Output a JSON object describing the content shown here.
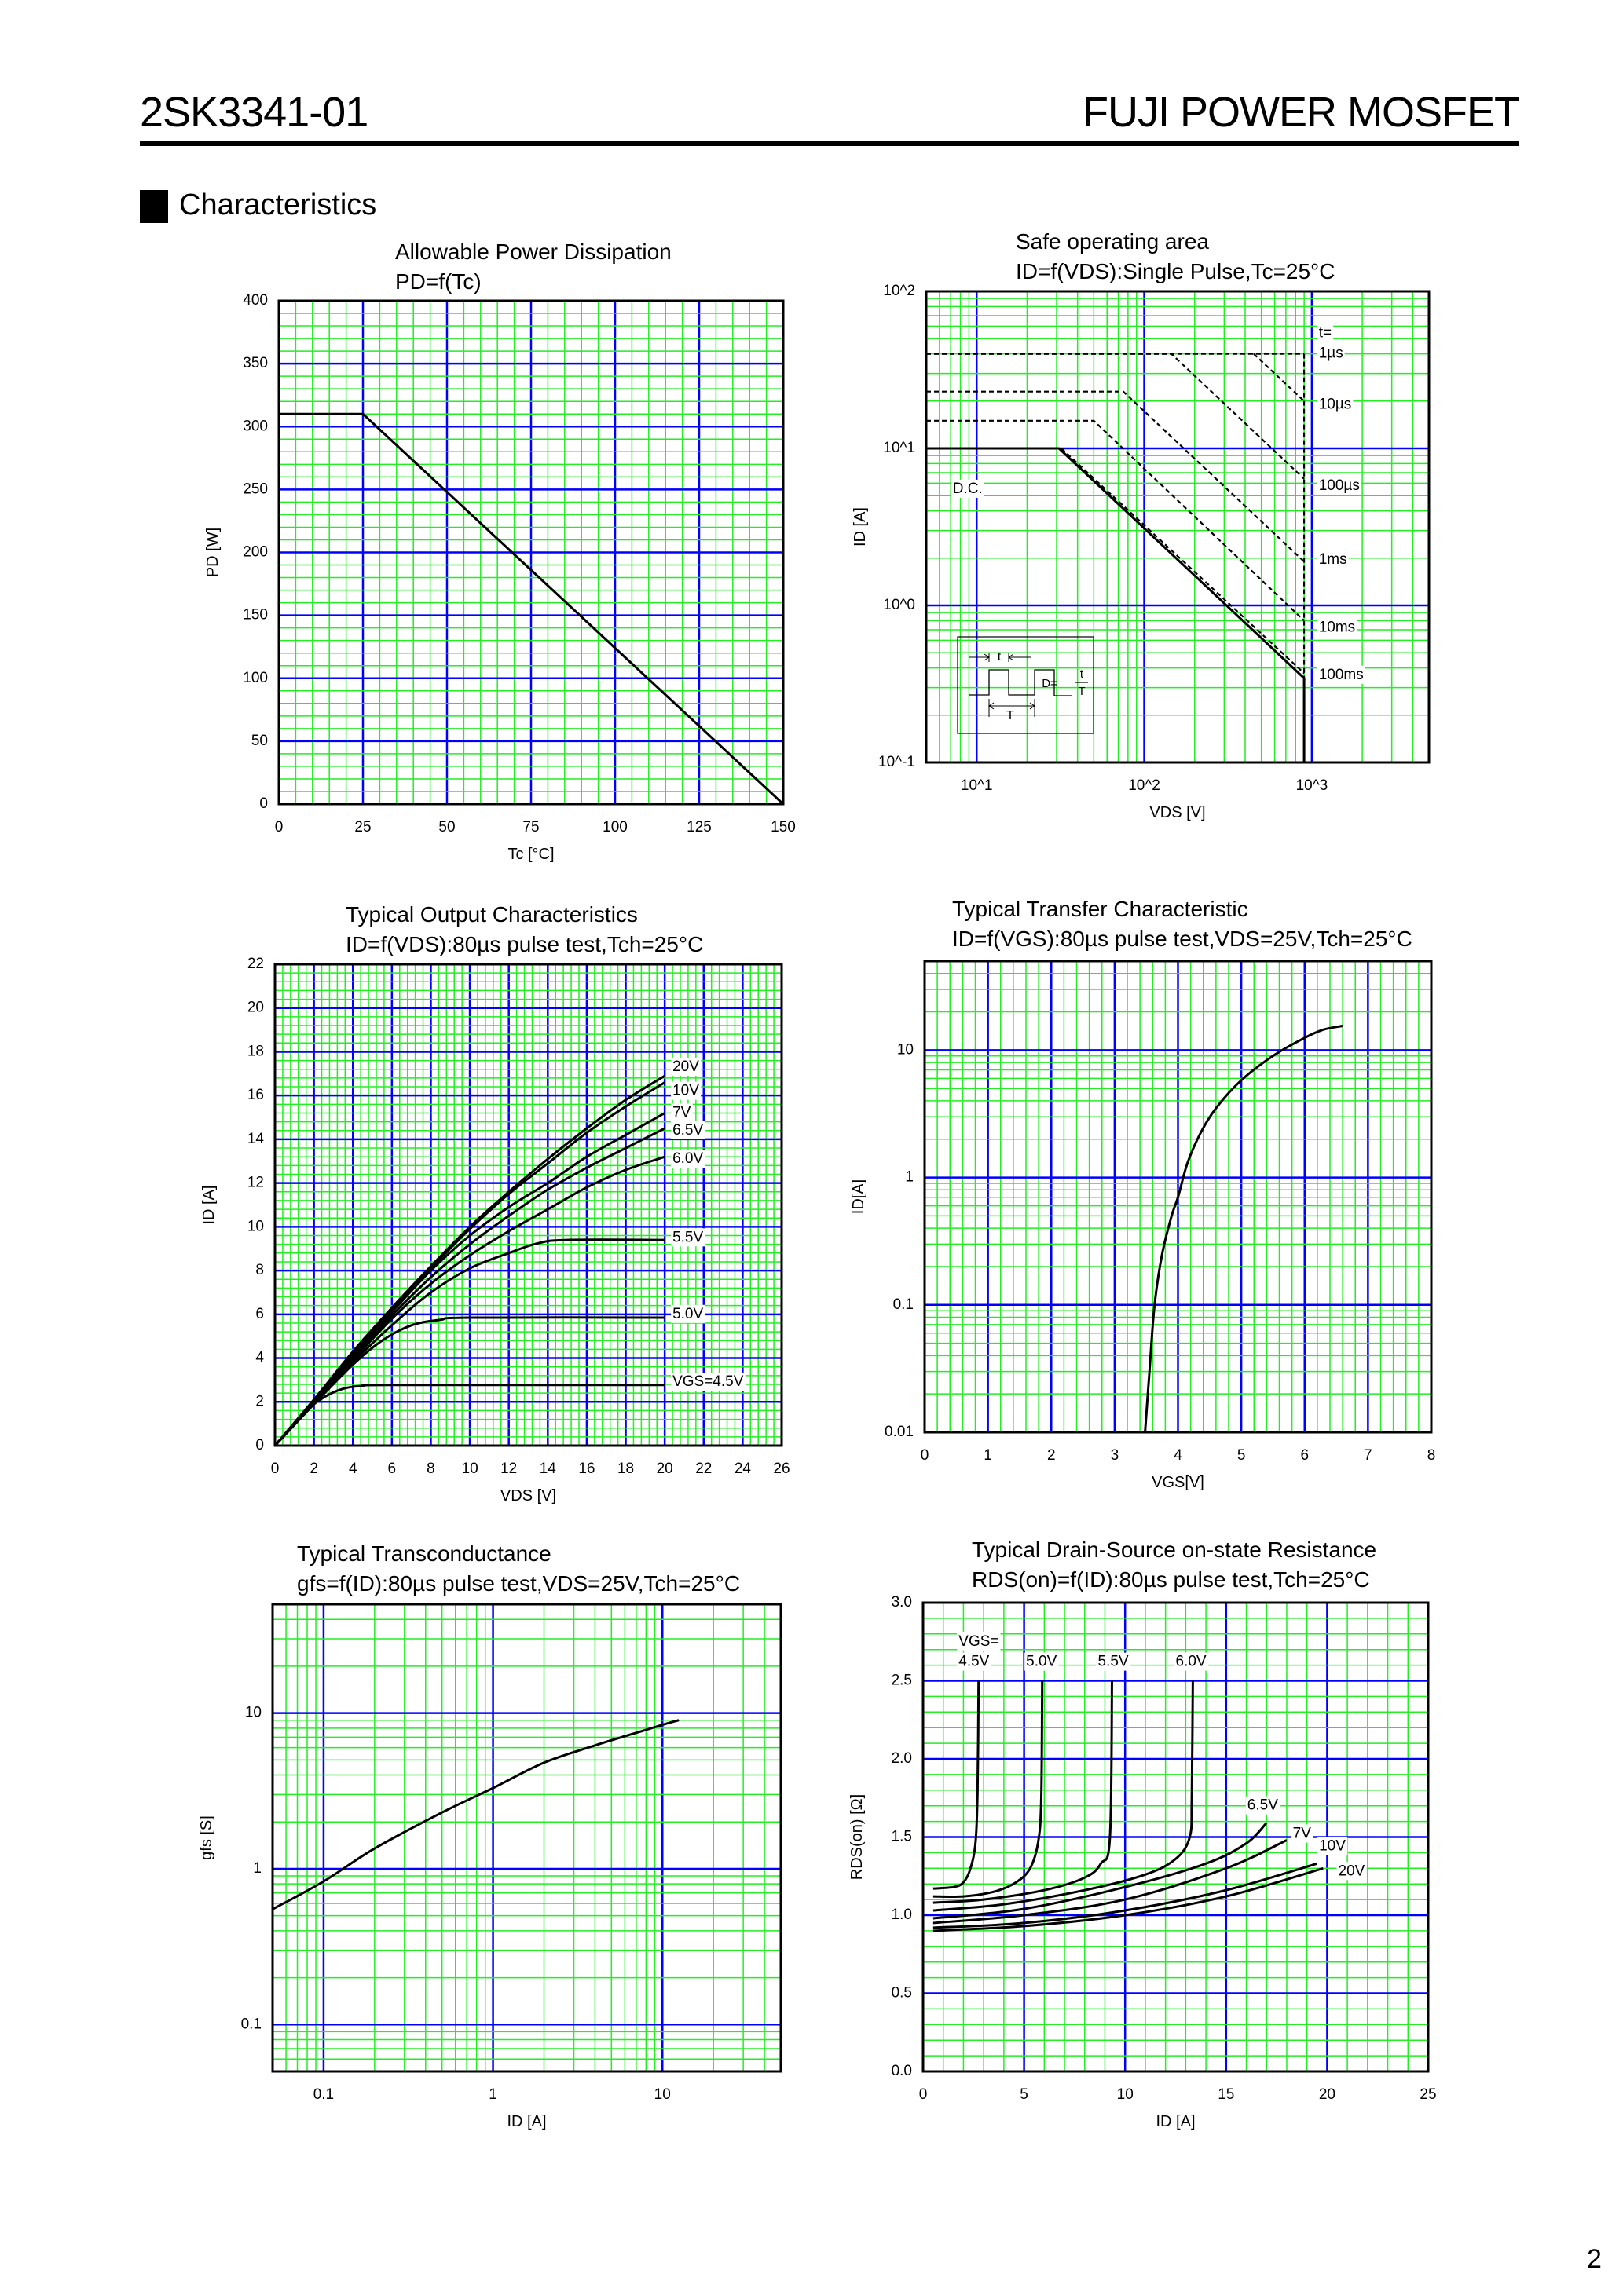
{
  "header": {
    "part_number": "2SK3341-01",
    "product_line": "FUJI POWER MOSFET"
  },
  "section": {
    "title": "Characteristics"
  },
  "page_number": "2",
  "colors": {
    "major_grid": "#0000ff",
    "minor_grid": "#22ee22",
    "curve": "#000000",
    "border": "#000000"
  },
  "chart_data": [
    {
      "type": "line",
      "title": "Allowable Power Dissipation",
      "subtitle": "PD=f(Tc)",
      "xlabel": "Tc [°C]",
      "ylabel": "PD [W]",
      "xscale": "linear",
      "yscale": "linear",
      "xlim": [
        0,
        150
      ],
      "ylim": [
        0,
        400
      ],
      "x_ticks": [
        0,
        25,
        50,
        75,
        100,
        125,
        150
      ],
      "x_tick_labels": [
        "0",
        "25",
        "50",
        "75",
        "100",
        "125",
        "150"
      ],
      "y_ticks": [
        0,
        50,
        100,
        150,
        200,
        250,
        300,
        350,
        400
      ],
      "y_tick_labels": [
        "0",
        "50",
        "100",
        "150",
        "200",
        "250",
        "300",
        "350",
        "400"
      ],
      "grid": true,
      "series": [
        {
          "points": [
            [
              0,
              310
            ],
            [
              25,
              310
            ],
            [
              150,
              0
            ]
          ],
          "style": "solid"
        }
      ]
    },
    {
      "type": "line",
      "title": "Safe operating area",
      "subtitle": "ID=f(VDS):Single Pulse,Tc=25°C",
      "xlabel": "VDS [V]",
      "ylabel": "ID [A]",
      "xscale": "log",
      "yscale": "log",
      "xlim": [
        5,
        5000
      ],
      "ylim": [
        0.1,
        100
      ],
      "x_ticks": [
        10,
        100,
        1000
      ],
      "x_tick_labels": [
        "10^1",
        "10^2",
        "10^3"
      ],
      "y_ticks": [
        0.1,
        1,
        10,
        100
      ],
      "y_tick_labels": [
        "10^-1",
        "10^0",
        "10^1",
        "10^2"
      ],
      "grid": true,
      "legend_title": "t=",
      "series": [
        {
          "name": "1µs",
          "points": [
            [
              5,
              40
            ],
            [
              900,
              40
            ]
          ],
          "style": "dashed"
        },
        {
          "name": "10µs",
          "points": [
            [
              450,
              40
            ],
            [
              900,
              20
            ]
          ],
          "style": "dashed"
        },
        {
          "name": "100µs",
          "points": [
            [
              5,
              40
            ],
            [
              145,
              40
            ],
            [
              900,
              6.4
            ]
          ],
          "style": "dashed"
        },
        {
          "name": "1ms",
          "points": [
            [
              5,
              23
            ],
            [
              75,
              23
            ],
            [
              900,
              1.9
            ]
          ],
          "style": "dashed"
        },
        {
          "name": "10ms",
          "points": [
            [
              5,
              15
            ],
            [
              50,
              15
            ],
            [
              900,
              0.8
            ]
          ],
          "style": "dashed"
        },
        {
          "name": "100ms",
          "points": [
            [
              32,
              10
            ],
            [
              900,
              0.37
            ]
          ],
          "style": "dashed"
        },
        {
          "name": "",
          "points": [
            [
              900,
              40
            ],
            [
              900,
              0.1
            ]
          ],
          "style": "dashed"
        },
        {
          "name": "D.C.",
          "points": [
            [
              5,
              10
            ],
            [
              31,
              10
            ],
            [
              900,
              0.344
            ],
            [
              900,
              0.1
            ]
          ],
          "style": "solid"
        }
      ],
      "inset": {
        "pulse_width": "t",
        "period": "T",
        "duty_label": "D=",
        "duty_num": "t",
        "duty_den": "T"
      }
    },
    {
      "type": "line",
      "title": "Typical Output Characteristics",
      "subtitle": "ID=f(VDS):80µs pulse test,Tch=25°C",
      "xlabel": "VDS [V]",
      "ylabel": "ID [A]",
      "xscale": "linear",
      "yscale": "linear",
      "xlim": [
        0,
        26
      ],
      "ylim": [
        0,
        22
      ],
      "x_ticks": [
        0,
        2,
        4,
        6,
        8,
        10,
        12,
        14,
        16,
        18,
        20,
        22,
        24,
        26
      ],
      "x_tick_labels": [
        "0",
        "2",
        "4",
        "6",
        "8",
        "10",
        "12",
        "14",
        "16",
        "18",
        "20",
        "22",
        "24",
        "26"
      ],
      "y_ticks": [
        0,
        2,
        4,
        6,
        8,
        10,
        12,
        14,
        16,
        18,
        20,
        22
      ],
      "y_tick_labels": [
        "0",
        "2",
        "4",
        "6",
        "8",
        "10",
        "12",
        "14",
        "16",
        "18",
        "20",
        "22"
      ],
      "grid": true,
      "series": [
        {
          "name": "20V",
          "points": [
            [
              0,
              0
            ],
            [
              2,
              2.1
            ],
            [
              4,
              4.3
            ],
            [
              6,
              6.3
            ],
            [
              8,
              8.2
            ],
            [
              10,
              10.0
            ],
            [
              12,
              11.6
            ],
            [
              14,
              13.1
            ],
            [
              16,
              14.5
            ],
            [
              18,
              15.8
            ],
            [
              20,
              16.9
            ]
          ]
        },
        {
          "name": "10V",
          "points": [
            [
              0,
              0
            ],
            [
              2,
              2.1
            ],
            [
              4,
              4.25
            ],
            [
              6,
              6.2
            ],
            [
              8,
              8.1
            ],
            [
              10,
              9.9
            ],
            [
              12,
              11.5
            ],
            [
              14,
              12.9
            ],
            [
              16,
              14.3
            ],
            [
              18,
              15.5
            ],
            [
              20,
              16.6
            ]
          ]
        },
        {
          "name": "7V",
          "points": [
            [
              0,
              0
            ],
            [
              2,
              2.05
            ],
            [
              4,
              4.15
            ],
            [
              6,
              6.1
            ],
            [
              8,
              8.0
            ],
            [
              10,
              9.6
            ],
            [
              12,
              10.9
            ],
            [
              14,
              12.0
            ],
            [
              16,
              13.2
            ],
            [
              18,
              14.2
            ],
            [
              20,
              15.2
            ]
          ]
        },
        {
          "name": "6.5V",
          "points": [
            [
              0,
              0
            ],
            [
              2,
              2.0
            ],
            [
              4,
              4.05
            ],
            [
              6,
              5.95
            ],
            [
              8,
              7.7
            ],
            [
              10,
              9.2
            ],
            [
              12,
              10.5
            ],
            [
              14,
              11.7
            ],
            [
              16,
              12.7
            ],
            [
              18,
              13.6
            ],
            [
              20,
              14.5
            ]
          ]
        },
        {
          "name": "6.0V",
          "points": [
            [
              0,
              0
            ],
            [
              2,
              1.95
            ],
            [
              4,
              3.9
            ],
            [
              6,
              5.8
            ],
            [
              8,
              7.4
            ],
            [
              10,
              8.7
            ],
            [
              12,
              9.8
            ],
            [
              14,
              10.8
            ],
            [
              16,
              11.8
            ],
            [
              18,
              12.6
            ],
            [
              20,
              13.2
            ]
          ]
        },
        {
          "name": "5.5V",
          "points": [
            [
              0,
              0
            ],
            [
              2,
              1.9
            ],
            [
              4,
              3.8
            ],
            [
              6,
              5.5
            ],
            [
              8,
              7.0
            ],
            [
              10,
              8.1
            ],
            [
              12,
              8.8
            ],
            [
              13.5,
              9.25
            ],
            [
              15,
              9.4
            ],
            [
              20,
              9.4
            ]
          ]
        },
        {
          "name": "5.0V",
          "points": [
            [
              0,
              0
            ],
            [
              2,
              1.9
            ],
            [
              4,
              3.7
            ],
            [
              5.5,
              4.8
            ],
            [
              7,
              5.5
            ],
            [
              8.5,
              5.75
            ],
            [
              10,
              5.85
            ],
            [
              20,
              5.85
            ]
          ]
        },
        {
          "name": "VGS=4.5V",
          "points": [
            [
              0,
              0
            ],
            [
              1.5,
              1.5
            ],
            [
              2.5,
              2.2
            ],
            [
              3.5,
              2.6
            ],
            [
              4.5,
              2.73
            ],
            [
              6,
              2.77
            ],
            [
              20,
              2.77
            ]
          ]
        }
      ]
    },
    {
      "type": "line",
      "title": "Typical Transfer Characteristic",
      "subtitle": "ID=f(VGS):80µs pulse test,VDS=25V,Tch=25°C",
      "xlabel": "VGS[V]",
      "ylabel": "ID[A]",
      "xscale": "linear",
      "yscale": "log",
      "xlim": [
        0,
        8
      ],
      "ylim": [
        0.01,
        50
      ],
      "x_ticks": [
        0,
        1,
        2,
        3,
        4,
        5,
        6,
        7,
        8
      ],
      "x_tick_labels": [
        "0",
        "1",
        "2",
        "3",
        "4",
        "5",
        "6",
        "7",
        "8"
      ],
      "y_ticks": [
        0.01,
        0.1,
        1,
        10
      ],
      "y_tick_labels": [
        "0.01",
        "0.1",
        "1",
        "10"
      ],
      "grid": true,
      "series": [
        {
          "points": [
            [
              3.48,
              0.01
            ],
            [
              3.55,
              0.03
            ],
            [
              3.63,
              0.1
            ],
            [
              3.75,
              0.25
            ],
            [
              3.9,
              0.5
            ],
            [
              4.0,
              0.7
            ],
            [
              4.15,
              1.3
            ],
            [
              4.35,
              2.2
            ],
            [
              4.6,
              3.5
            ],
            [
              5.0,
              5.8
            ],
            [
              5.5,
              9.0
            ],
            [
              6.0,
              12.5
            ],
            [
              6.3,
              14.5
            ],
            [
              6.6,
              15.5
            ]
          ]
        }
      ]
    },
    {
      "type": "line",
      "title": "Typical Transconductance",
      "subtitle": "gfs=f(ID):80µs pulse test,VDS=25V,Tch=25°C",
      "xlabel": "ID [A]",
      "ylabel": "gfs [S]",
      "xscale": "log",
      "yscale": "log",
      "xlim": [
        0.05,
        50
      ],
      "ylim": [
        0.05,
        50
      ],
      "x_ticks": [
        0.1,
        1,
        10
      ],
      "x_tick_labels": [
        "0.1",
        "1",
        "10"
      ],
      "y_ticks": [
        0.1,
        1,
        10
      ],
      "y_tick_labels": [
        "0.1",
        "1",
        "10"
      ],
      "grid": true,
      "series": [
        {
          "points": [
            [
              0.05,
              0.55
            ],
            [
              0.1,
              0.83
            ],
            [
              0.2,
              1.35
            ],
            [
              0.5,
              2.3
            ],
            [
              1,
              3.3
            ],
            [
              2,
              4.8
            ],
            [
              4,
              6.2
            ],
            [
              6,
              7.1
            ],
            [
              10,
              8.4
            ],
            [
              12.5,
              9.0
            ]
          ]
        }
      ]
    },
    {
      "type": "line",
      "title": "Typical Drain-Source on-state Resistance",
      "subtitle": "RDS(on)=f(ID):80µs pulse test,Tch=25°C",
      "xlabel": "ID [A]",
      "ylabel": "RDS(on) [Ω]",
      "xscale": "linear",
      "yscale": "linear",
      "xlim": [
        0,
        25
      ],
      "ylim": [
        0,
        3.0
      ],
      "x_ticks": [
        0,
        5,
        10,
        15,
        20,
        25
      ],
      "x_tick_labels": [
        "0",
        "5",
        "10",
        "15",
        "20",
        "25"
      ],
      "y_ticks": [
        0,
        0.5,
        1.0,
        1.5,
        2.0,
        2.5,
        3.0
      ],
      "y_tick_labels": [
        "0.0",
        "0.5",
        "1.0",
        "1.5",
        "2.0",
        "2.5",
        "3.0"
      ],
      "grid": true,
      "legend_title": "VGS=",
      "series": [
        {
          "name": "4.5V",
          "points": [
            [
              0.5,
              1.17
            ],
            [
              1.5,
              1.18
            ],
            [
              2.0,
              1.21
            ],
            [
              2.35,
              1.3
            ],
            [
              2.6,
              1.47
            ],
            [
              2.7,
              1.8
            ],
            [
              2.75,
              2.5
            ]
          ]
        },
        {
          "name": "5.0V",
          "points": [
            [
              0.5,
              1.12
            ],
            [
              2,
              1.12
            ],
            [
              3.5,
              1.15
            ],
            [
              4.6,
              1.21
            ],
            [
              5.3,
              1.3
            ],
            [
              5.7,
              1.47
            ],
            [
              5.85,
              1.75
            ],
            [
              5.9,
              2.5
            ]
          ]
        },
        {
          "name": "5.5V",
          "points": [
            [
              0.5,
              1.08
            ],
            [
              3,
              1.1
            ],
            [
              6,
              1.16
            ],
            [
              8,
              1.24
            ],
            [
              8.8,
              1.33
            ],
            [
              9.25,
              1.5
            ],
            [
              9.35,
              2.5
            ]
          ]
        },
        {
          "name": "6.0V",
          "points": [
            [
              0.5,
              1.03
            ],
            [
              4,
              1.07
            ],
            [
              8,
              1.16
            ],
            [
              11,
              1.26
            ],
            [
              12.5,
              1.36
            ],
            [
              13.2,
              1.5
            ],
            [
              13.3,
              1.75
            ],
            [
              13.35,
              2.5
            ]
          ]
        },
        {
          "name": "6.5V",
          "points": [
            [
              0.5,
              0.98
            ],
            [
              5,
              1.04
            ],
            [
              10,
              1.18
            ],
            [
              14,
              1.33
            ],
            [
              16,
              1.46
            ],
            [
              17,
              1.59
            ]
          ]
        },
        {
          "name": "7V",
          "points": [
            [
              0.5,
              0.95
            ],
            [
              5,
              1.0
            ],
            [
              10,
              1.1
            ],
            [
              15,
              1.3
            ],
            [
              18,
              1.48
            ]
          ]
        },
        {
          "name": "10V",
          "points": [
            [
              0.5,
              0.92
            ],
            [
              5,
              0.95
            ],
            [
              10,
              1.03
            ],
            [
              15,
              1.16
            ],
            [
              19.5,
              1.33
            ]
          ]
        },
        {
          "name": "20V",
          "points": [
            [
              0.5,
              0.9
            ],
            [
              5,
              0.93
            ],
            [
              10,
              1.0
            ],
            [
              15,
              1.12
            ],
            [
              19.8,
              1.3
            ]
          ]
        }
      ]
    }
  ]
}
